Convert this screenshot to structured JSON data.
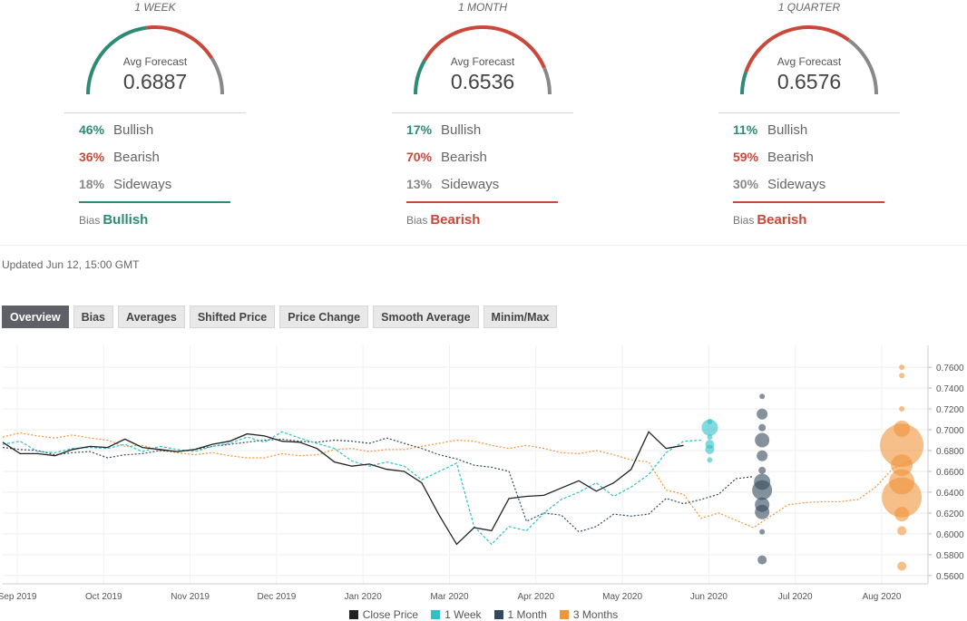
{
  "panels": [
    {
      "title": "1 WEEK",
      "gauge_label": "Avg Forecast",
      "avg_forecast": "0.6887",
      "bullish_pct": "46%",
      "bullish_label": "Bullish",
      "bearish_pct": "36%",
      "bearish_label": "Bearish",
      "sideways_pct": "18%",
      "sideways_label": "Sideways",
      "bias_label": "Bias",
      "bias_value": "Bullish",
      "bias_color": "#2e8b73",
      "gauge_split": [
        0.46,
        0.36,
        0.18
      ]
    },
    {
      "title": "1 MONTH",
      "gauge_label": "Avg Forecast",
      "avg_forecast": "0.6536",
      "bullish_pct": "17%",
      "bullish_label": "Bullish",
      "bearish_pct": "70%",
      "bearish_label": "Bearish",
      "sideways_pct": "13%",
      "sideways_label": "Sideways",
      "bias_label": "Bias",
      "bias_value": "Bearish",
      "bias_color": "#c9483a",
      "gauge_split": [
        0.17,
        0.7,
        0.13
      ]
    },
    {
      "title": "1 QUARTER",
      "gauge_label": "Avg Forecast",
      "avg_forecast": "0.6576",
      "bullish_pct": "11%",
      "bullish_label": "Bullish",
      "bearish_pct": "59%",
      "bearish_label": "Bearish",
      "sideways_pct": "30%",
      "sideways_label": "Sideways",
      "bias_label": "Bias",
      "bias_value": "Bearish",
      "bias_color": "#c9483a",
      "gauge_split": [
        0.11,
        0.59,
        0.3
      ]
    }
  ],
  "colors": {
    "bullish": "#2e8b73",
    "bearish": "#c9483a",
    "sideways": "#888888"
  },
  "updated": "Updated Jun 12, 15:00 GMT",
  "tabs": [
    "Overview",
    "Bias",
    "Averages",
    "Shifted Price",
    "Price Change",
    "Smooth Average",
    "Minim/Max"
  ],
  "active_tab": "Overview",
  "chart_data": {
    "type": "line",
    "x_ticks": [
      "Sep 2019",
      "Oct 2019",
      "Nov 2019",
      "Dec 2019",
      "Jan 2020",
      "Mar 2020",
      "Apr 2020",
      "May 2020",
      "Jun 2020",
      "Jul 2020",
      "Aug 2020"
    ],
    "y_ticks": [
      "0.7600",
      "0.7400",
      "0.7200",
      "0.7000",
      "0.6800",
      "0.6600",
      "0.6400",
      "0.6200",
      "0.6000",
      "0.5800",
      "0.5600"
    ],
    "ylim": [
      0.552,
      0.781
    ],
    "xlim": [
      0,
      53
    ],
    "y_axis_position": "right",
    "grid": true,
    "legend_position": "bottom",
    "series": [
      {
        "name": "Close Price",
        "color": "#222222",
        "style": "solid",
        "x": [
          0,
          1,
          2,
          3,
          4,
          5,
          6,
          7,
          8,
          9,
          10,
          11,
          12,
          13,
          14,
          15,
          16,
          17,
          18,
          19,
          20,
          21,
          22,
          23,
          24,
          25,
          26,
          27,
          28,
          29,
          30,
          31,
          32,
          33,
          34,
          35,
          36,
          37,
          38,
          39
        ],
        "y": [
          0.688,
          0.677,
          0.677,
          0.675,
          0.681,
          0.684,
          0.683,
          0.691,
          0.683,
          0.681,
          0.679,
          0.681,
          0.686,
          0.689,
          0.696,
          0.694,
          0.689,
          0.688,
          0.682,
          0.669,
          0.665,
          0.667,
          0.662,
          0.66,
          0.649,
          0.618,
          0.59,
          0.606,
          0.603,
          0.634,
          0.636,
          0.637,
          0.644,
          0.651,
          0.641,
          0.649,
          0.662,
          0.698,
          0.682,
          0.685
        ]
      },
      {
        "name": "1 Week",
        "color": "#2ebfc8",
        "style": "dashed",
        "x": [
          0,
          1,
          2,
          3,
          4,
          5,
          6,
          7,
          8,
          9,
          10,
          11,
          12,
          13,
          14,
          15,
          16,
          17,
          18,
          19,
          20,
          21,
          22,
          23,
          24,
          25,
          26,
          27,
          28,
          29,
          30,
          31,
          32,
          33,
          34,
          35,
          36,
          37,
          38,
          39,
          40
        ],
        "y": [
          0.686,
          0.689,
          0.679,
          0.678,
          0.682,
          0.683,
          0.682,
          0.686,
          0.679,
          0.684,
          0.681,
          0.679,
          0.684,
          0.687,
          0.693,
          0.688,
          0.698,
          0.692,
          0.687,
          0.682,
          0.67,
          0.665,
          0.669,
          0.665,
          0.652,
          0.66,
          0.668,
          0.607,
          0.59,
          0.607,
          0.603,
          0.62,
          0.633,
          0.64,
          0.649,
          0.636,
          0.645,
          0.657,
          0.678,
          0.689,
          0.69
        ]
      },
      {
        "name": "1 Month",
        "color": "#34495e",
        "style": "dotted",
        "x": [
          0,
          1,
          2,
          3,
          4,
          5,
          6,
          7,
          8,
          9,
          10,
          11,
          12,
          13,
          14,
          15,
          16,
          17,
          18,
          19,
          20,
          21,
          22,
          23,
          24,
          25,
          26,
          27,
          28,
          29,
          30,
          31,
          32,
          33,
          34,
          35,
          36,
          37,
          38,
          39,
          40,
          41,
          42,
          43
        ],
        "y": [
          0.683,
          0.681,
          0.68,
          0.676,
          0.678,
          0.679,
          0.673,
          0.676,
          0.677,
          0.68,
          0.679,
          0.681,
          0.684,
          0.686,
          0.688,
          0.69,
          0.691,
          0.689,
          0.688,
          0.69,
          0.689,
          0.687,
          0.692,
          0.687,
          0.682,
          0.676,
          0.672,
          0.666,
          0.664,
          0.66,
          0.612,
          0.62,
          0.618,
          0.602,
          0.607,
          0.619,
          0.617,
          0.619,
          0.634,
          0.629,
          0.633,
          0.638,
          0.653,
          0.655
        ]
      },
      {
        "name": "3 Months",
        "color": "#f0953a",
        "style": "dotted",
        "x": [
          0,
          1,
          2,
          3,
          4,
          5,
          6,
          7,
          8,
          9,
          10,
          11,
          12,
          13,
          14,
          15,
          16,
          17,
          18,
          19,
          20,
          21,
          22,
          23,
          24,
          25,
          26,
          27,
          28,
          29,
          30,
          31,
          32,
          33,
          34,
          35,
          36,
          37,
          38,
          39,
          40,
          41,
          42,
          43,
          44,
          45,
          46,
          47,
          48,
          49,
          50,
          51,
          52
        ],
        "y": [
          0.693,
          0.697,
          0.694,
          0.692,
          0.695,
          0.692,
          0.69,
          0.684,
          0.685,
          0.68,
          0.678,
          0.676,
          0.678,
          0.675,
          0.673,
          0.673,
          0.677,
          0.675,
          0.676,
          0.681,
          0.682,
          0.679,
          0.681,
          0.681,
          0.684,
          0.687,
          0.69,
          0.689,
          0.685,
          0.682,
          0.685,
          0.682,
          0.678,
          0.677,
          0.68,
          0.676,
          0.671,
          0.669,
          0.642,
          0.638,
          0.615,
          0.62,
          0.613,
          0.606,
          0.617,
          0.628,
          0.63,
          0.631,
          0.631,
          0.633,
          0.645,
          0.663,
          0.67
        ]
      }
    ],
    "bubbles": [
      {
        "x": 40.5,
        "y": 0.708,
        "r": 3,
        "color": "#2ebfc8"
      },
      {
        "x": 40.5,
        "y": 0.702,
        "r": 9,
        "color": "#2ebfc8"
      },
      {
        "x": 40.5,
        "y": 0.693,
        "r": 3,
        "color": "#2ebfc8"
      },
      {
        "x": 40.5,
        "y": 0.686,
        "r": 5,
        "color": "#2ebfc8"
      },
      {
        "x": 40.5,
        "y": 0.681,
        "r": 5,
        "color": "#2ebfc8"
      },
      {
        "x": 40.5,
        "y": 0.671,
        "r": 3,
        "color": "#2ebfc8"
      },
      {
        "x": 43.5,
        "y": 0.732,
        "r": 3,
        "color": "#34495e"
      },
      {
        "x": 43.5,
        "y": 0.715,
        "r": 6,
        "color": "#34495e"
      },
      {
        "x": 43.5,
        "y": 0.702,
        "r": 4,
        "color": "#34495e"
      },
      {
        "x": 43.5,
        "y": 0.69,
        "r": 8,
        "color": "#34495e"
      },
      {
        "x": 43.5,
        "y": 0.675,
        "r": 6,
        "color": "#34495e"
      },
      {
        "x": 43.5,
        "y": 0.661,
        "r": 4,
        "color": "#34495e"
      },
      {
        "x": 43.5,
        "y": 0.65,
        "r": 9,
        "color": "#34495e"
      },
      {
        "x": 43.5,
        "y": 0.642,
        "r": 11,
        "color": "#34495e"
      },
      {
        "x": 43.5,
        "y": 0.628,
        "r": 8,
        "color": "#34495e"
      },
      {
        "x": 43.5,
        "y": 0.621,
        "r": 8,
        "color": "#34495e"
      },
      {
        "x": 43.5,
        "y": 0.602,
        "r": 3,
        "color": "#34495e"
      },
      {
        "x": 43.5,
        "y": 0.575,
        "r": 5,
        "color": "#34495e"
      },
      {
        "x": 51.5,
        "y": 0.76,
        "r": 3,
        "color": "#f0953a"
      },
      {
        "x": 51.5,
        "y": 0.752,
        "r": 3,
        "color": "#f0953a"
      },
      {
        "x": 51.5,
        "y": 0.72,
        "r": 3,
        "color": "#f0953a"
      },
      {
        "x": 51.5,
        "y": 0.701,
        "r": 9,
        "color": "#f0953a"
      },
      {
        "x": 51.5,
        "y": 0.685,
        "r": 24,
        "color": "#f0953a"
      },
      {
        "x": 51.5,
        "y": 0.666,
        "r": 12,
        "color": "#f0953a"
      },
      {
        "x": 51.5,
        "y": 0.65,
        "r": 14,
        "color": "#f0953a"
      },
      {
        "x": 51.5,
        "y": 0.635,
        "r": 22,
        "color": "#f0953a"
      },
      {
        "x": 51.5,
        "y": 0.619,
        "r": 8,
        "color": "#f0953a"
      },
      {
        "x": 51.5,
        "y": 0.603,
        "r": 5,
        "color": "#f0953a"
      },
      {
        "x": 51.5,
        "y": 0.569,
        "r": 5,
        "color": "#f0953a"
      }
    ]
  },
  "legend": [
    {
      "label": "Close Price",
      "color": "#222222"
    },
    {
      "label": "1 Week",
      "color": "#2ebfc8"
    },
    {
      "label": "1 Month",
      "color": "#34495e"
    },
    {
      "label": "3 Months",
      "color": "#f0953a"
    }
  ]
}
